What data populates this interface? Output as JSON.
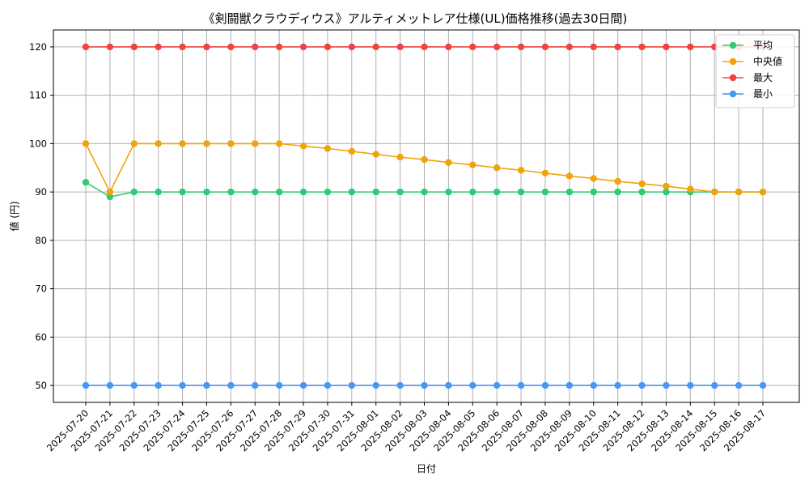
{
  "chart_data": {
    "type": "line",
    "title": "《剣闘獣クラウディウス》アルティメットレア仕様(UL)価格推移(過去30日間)",
    "xlabel": "日付",
    "ylabel": "値 (円)",
    "ylim": [
      46.5,
      123.5
    ],
    "yticks": [
      50,
      60,
      70,
      80,
      90,
      100,
      110,
      120
    ],
    "grid": true,
    "legend_position": "top-right",
    "categories": [
      "2025-07-20",
      "2025-07-21",
      "2025-07-22",
      "2025-07-23",
      "2025-07-24",
      "2025-07-25",
      "2025-07-26",
      "2025-07-27",
      "2025-07-28",
      "2025-07-29",
      "2025-07-30",
      "2025-07-31",
      "2025-08-01",
      "2025-08-02",
      "2025-08-03",
      "2025-08-04",
      "2025-08-05",
      "2025-08-06",
      "2025-08-07",
      "2025-08-08",
      "2025-08-09",
      "2025-08-10",
      "2025-08-11",
      "2025-08-12",
      "2025-08-13",
      "2025-08-14",
      "2025-08-15",
      "2025-08-16",
      "2025-08-17"
    ],
    "series": [
      {
        "name": "平均",
        "color": "#2ecc71",
        "values": [
          92,
          89,
          90,
          90,
          90,
          90,
          90,
          90,
          90,
          90,
          90,
          90,
          90,
          90,
          90,
          90,
          90,
          90,
          90,
          90,
          90,
          90,
          90,
          90,
          90,
          90,
          90,
          90,
          90
        ]
      },
      {
        "name": "中央値",
        "color": "#f0a30a",
        "values": [
          100,
          90,
          100,
          100,
          100,
          100,
          100,
          100,
          100,
          99.5,
          99,
          98.4,
          97.8,
          97.2,
          96.7,
          96.1,
          95.6,
          95,
          94.5,
          93.9,
          93.3,
          92.8,
          92.2,
          91.7,
          91.2,
          90.6,
          90,
          90,
          90
        ]
      },
      {
        "name": "最大",
        "color": "#f04444",
        "values": [
          120,
          120,
          120,
          120,
          120,
          120,
          120,
          120,
          120,
          120,
          120,
          120,
          120,
          120,
          120,
          120,
          120,
          120,
          120,
          120,
          120,
          120,
          120,
          120,
          120,
          120,
          120,
          120,
          120
        ]
      },
      {
        "name": "最小",
        "color": "#4a96f0",
        "values": [
          50,
          50,
          50,
          50,
          50,
          50,
          50,
          50,
          50,
          50,
          50,
          50,
          50,
          50,
          50,
          50,
          50,
          50,
          50,
          50,
          50,
          50,
          50,
          50,
          50,
          50,
          50,
          50,
          50
        ]
      }
    ]
  }
}
